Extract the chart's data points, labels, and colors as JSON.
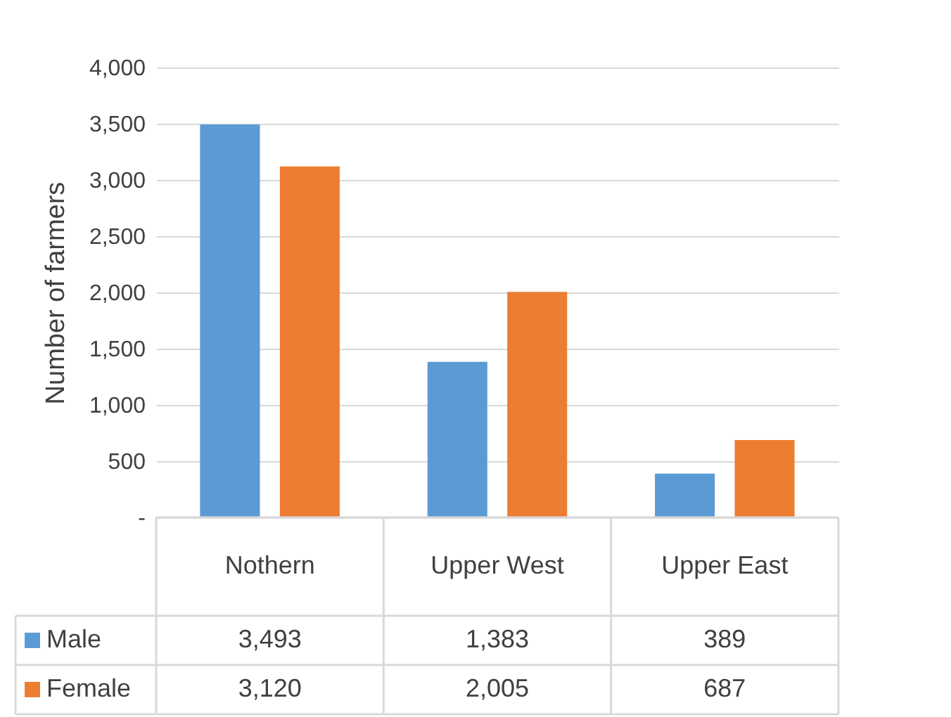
{
  "chart_data": {
    "type": "bar",
    "ylabel": "Number of farmers",
    "categories": [
      "Nothern",
      "Upper West",
      "Upper East"
    ],
    "series": [
      {
        "name": "Male",
        "color": "#5b9bd5",
        "values": [
          3493,
          1383,
          389
        ],
        "value_labels": [
          "3,493",
          "1,383",
          "389"
        ]
      },
      {
        "name": "Female",
        "color": "#ed7d31",
        "values": [
          3120,
          2005,
          687
        ],
        "value_labels": [
          "3,120",
          "2,005",
          "687"
        ]
      }
    ],
    "ylim": [
      0,
      4000
    ],
    "yticks": [
      {
        "value": 0,
        "label": "-"
      },
      {
        "value": 500,
        "label": "500"
      },
      {
        "value": 1000,
        "label": "1,000"
      },
      {
        "value": 1500,
        "label": "1,500"
      },
      {
        "value": 2000,
        "label": "2,000"
      },
      {
        "value": 2500,
        "label": "2,500"
      },
      {
        "value": 3000,
        "label": "3,000"
      },
      {
        "value": 3500,
        "label": "3,500"
      },
      {
        "value": 4000,
        "label": "4,000"
      }
    ],
    "grid": "y",
    "legend": "bottom"
  }
}
